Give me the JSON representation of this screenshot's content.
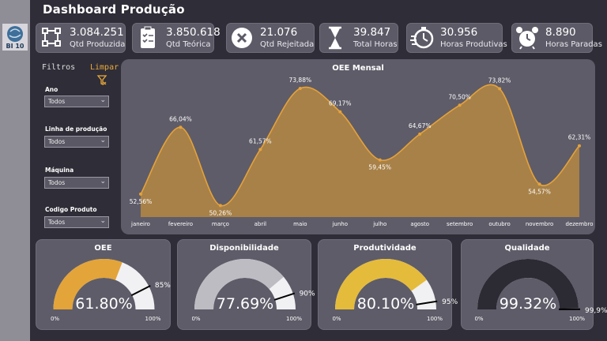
{
  "logo_text": "BI 10",
  "header": {
    "title": "Dashboard Produção"
  },
  "kpis": [
    {
      "value": "3.084.251",
      "label": "Qtd Produzida",
      "icon": "production-flow-icon"
    },
    {
      "value": "3.850.618",
      "label": "Qtd Teórica",
      "icon": "clipboard-checklist-icon"
    },
    {
      "value": "21.076",
      "label": "Qtd Rejeitada",
      "icon": "reject-x-icon"
    },
    {
      "value": "39.847",
      "label": "Total Horas",
      "icon": "hourglass-icon"
    },
    {
      "value": "30.956",
      "label": "Horas Produtivas",
      "icon": "stopwatch-icon"
    },
    {
      "value": "8.890",
      "label": "Horas Paradas",
      "icon": "alarm-clock-icon"
    }
  ],
  "filters": {
    "title": "Filtros",
    "clear_label": "Limpar",
    "items": [
      {
        "label": "Ano",
        "value": "Todos"
      },
      {
        "label": "Linha de produção",
        "value": "Todos"
      },
      {
        "label": "Máquina",
        "value": "Todos"
      },
      {
        "label": "Codigo Produto",
        "value": "Todos"
      }
    ]
  },
  "colors": {
    "area": "#b08545",
    "line": "#e5a23a",
    "oee": "#e3a43a",
    "disponibilidade": "#bdbcc2",
    "produtividade": "#e5bb3c",
    "qualidade": "#2c2a33"
  },
  "chart_data": [
    {
      "type": "area",
      "title": "OEE Mensal",
      "categories": [
        "janeiro",
        "fevereiro",
        "março",
        "abril",
        "maio",
        "junho",
        "julho",
        "agosto",
        "setembro",
        "outubro",
        "novembro",
        "dezembro"
      ],
      "values": [
        52.56,
        66.04,
        50.26,
        61.57,
        73.88,
        69.17,
        59.45,
        64.67,
        70.5,
        73.82,
        54.57,
        62.31
      ],
      "labels": [
        "52,56%",
        "66,04%",
        "50,26%",
        "61,57%",
        "73,88%",
        "69,17%",
        "59,45%",
        "64,67%",
        "70,50%",
        "73,82%",
        "54,57%",
        "62,31%"
      ],
      "ylim": [
        50,
        75
      ],
      "grid": false
    },
    {
      "type": "gauge",
      "title": "OEE",
      "value": 61.8,
      "value_label": "61.80%",
      "target": 85,
      "target_label": "85%",
      "min_label": "0%",
      "max_label": "100%"
    },
    {
      "type": "gauge",
      "title": "Disponibilidade",
      "value": 77.69,
      "value_label": "77.69%",
      "target": 90,
      "target_label": "90%",
      "min_label": "0%",
      "max_label": "100%"
    },
    {
      "type": "gauge",
      "title": "Produtividade",
      "value": 80.1,
      "value_label": "80.10%",
      "target": 95,
      "target_label": "95%",
      "min_label": "0%",
      "max_label": "100%"
    },
    {
      "type": "gauge",
      "title": "Qualidade",
      "value": 99.32,
      "value_label": "99.32%",
      "target": 99.9,
      "target_label": "99,9%",
      "min_label": "0%",
      "max_label": "100%"
    }
  ]
}
